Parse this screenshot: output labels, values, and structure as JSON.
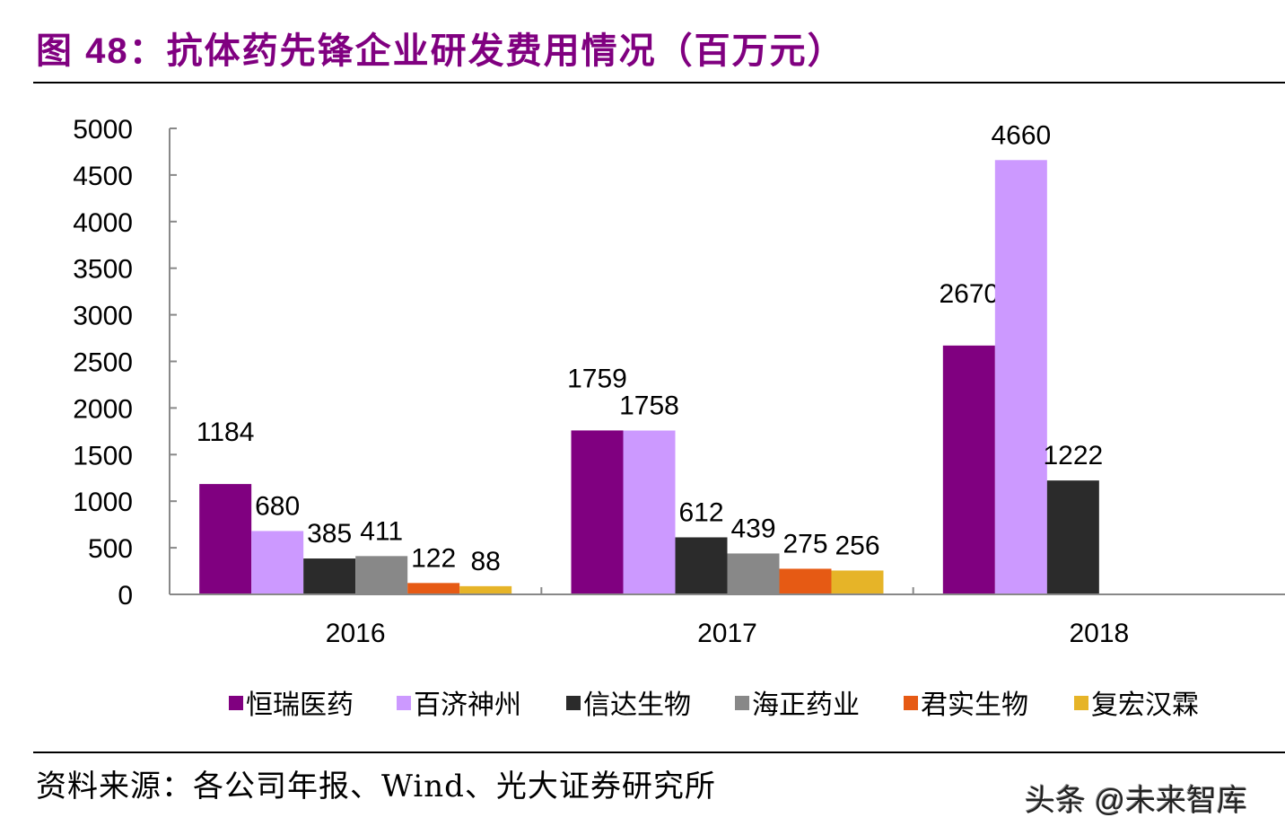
{
  "title": "图 48：抗体药先锋企业研发费用情况（百万元）",
  "source": "资料来源：各公司年报、Wind、光大证券研究所",
  "watermark": "头条 @未来智库",
  "chart_data": {
    "type": "bar",
    "title": "",
    "xlabel": "",
    "ylabel": "",
    "categories": [
      "2016",
      "2017",
      "2018"
    ],
    "ylim": [
      0,
      5000
    ],
    "yticks": [
      0,
      500,
      1000,
      1500,
      2000,
      2500,
      3000,
      3500,
      4000,
      4500,
      5000
    ],
    "grid": false,
    "legend_position": "bottom",
    "series": [
      {
        "name": "恒瑞医药",
        "color": "#800080",
        "values": [
          1184,
          1759,
          2670
        ]
      },
      {
        "name": "百济神州",
        "color": "#CC99FF",
        "values": [
          680,
          1758,
          4660
        ]
      },
      {
        "name": "信达生物",
        "color": "#2B2B2B",
        "values": [
          385,
          612,
          1222
        ]
      },
      {
        "name": "海正药业",
        "color": "#888888",
        "values": [
          411,
          439,
          null
        ]
      },
      {
        "name": "君实生物",
        "color": "#E65A14",
        "values": [
          122,
          275,
          null
        ]
      },
      {
        "name": "复宏汉霖",
        "color": "#E6B428",
        "values": [
          88,
          256,
          null
        ]
      }
    ]
  }
}
